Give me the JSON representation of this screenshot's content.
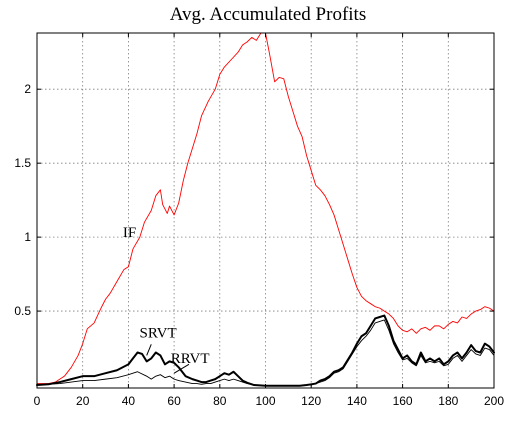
{
  "chart_data": {
    "type": "line",
    "title": "Avg. Accumulated Profits",
    "xlabel": "",
    "ylabel": "",
    "xlim": [
      0,
      200
    ],
    "ylim": [
      -0.02,
      2.38
    ],
    "xticks": [
      0,
      20,
      40,
      60,
      80,
      100,
      120,
      140,
      160,
      180,
      200
    ],
    "yticks": [
      0.5,
      1,
      1.5,
      2
    ],
    "ytick_labels": [
      "0.5",
      "1",
      "1.5",
      "2"
    ],
    "grid": true,
    "legend": "none",
    "series": [
      {
        "name": "IF",
        "color": "#ff0000",
        "width": 0.9,
        "x": [
          0,
          5,
          8,
          10,
          12,
          15,
          18,
          20,
          22,
          25,
          28,
          30,
          32,
          35,
          38,
          40,
          42,
          45,
          47,
          50,
          52,
          54,
          55,
          57,
          58,
          60,
          62,
          64,
          66,
          68,
          70,
          72,
          75,
          78,
          80,
          82,
          85,
          88,
          90,
          92,
          94,
          96,
          98,
          100,
          102,
          104,
          106,
          108,
          110,
          112,
          114,
          116,
          118,
          120,
          122,
          124,
          126,
          128,
          130,
          132,
          134,
          136,
          138,
          140,
          142,
          144,
          146,
          148,
          150,
          152,
          154,
          156,
          158,
          160,
          162,
          164,
          166,
          168,
          170,
          172,
          174,
          176,
          178,
          180,
          182,
          184,
          186,
          188,
          190,
          192,
          194,
          196,
          198,
          200
        ],
        "y": [
          0.01,
          0.01,
          0.02,
          0.04,
          0.06,
          0.12,
          0.2,
          0.28,
          0.38,
          0.42,
          0.52,
          0.58,
          0.62,
          0.7,
          0.78,
          0.8,
          0.92,
          1.0,
          1.1,
          1.18,
          1.28,
          1.32,
          1.22,
          1.16,
          1.21,
          1.15,
          1.23,
          1.38,
          1.5,
          1.6,
          1.7,
          1.82,
          1.92,
          2.0,
          2.1,
          2.15,
          2.2,
          2.25,
          2.3,
          2.32,
          2.35,
          2.33,
          2.38,
          2.38,
          2.22,
          2.05,
          2.08,
          2.07,
          1.95,
          1.85,
          1.75,
          1.68,
          1.55,
          1.45,
          1.35,
          1.32,
          1.28,
          1.22,
          1.15,
          1.05,
          0.95,
          0.85,
          0.75,
          0.66,
          0.6,
          0.57,
          0.55,
          0.53,
          0.52,
          0.5,
          0.48,
          0.45,
          0.4,
          0.37,
          0.36,
          0.38,
          0.35,
          0.38,
          0.39,
          0.37,
          0.4,
          0.4,
          0.38,
          0.41,
          0.43,
          0.42,
          0.46,
          0.45,
          0.48,
          0.5,
          0.51,
          0.53,
          0.52,
          0.5
        ]
      },
      {
        "name": "SRVT",
        "color": "#000000",
        "width": 2.0,
        "x": [
          0,
          5,
          10,
          15,
          20,
          25,
          30,
          35,
          40,
          42,
          44,
          46,
          48,
          50,
          52,
          54,
          56,
          58,
          60,
          62,
          65,
          68,
          70,
          72,
          74,
          76,
          78,
          80,
          82,
          84,
          86,
          88,
          90,
          92,
          95,
          100,
          105,
          110,
          115,
          118,
          120,
          122,
          124,
          126,
          128,
          130,
          132,
          134,
          136,
          138,
          140,
          142,
          144,
          146,
          148,
          150,
          152,
          154,
          156,
          158,
          160,
          162,
          164,
          166,
          168,
          170,
          172,
          174,
          176,
          178,
          180,
          182,
          184,
          186,
          188,
          190,
          192,
          194,
          196,
          198,
          200
        ],
        "y": [
          0.0,
          0.005,
          0.02,
          0.04,
          0.06,
          0.06,
          0.08,
          0.1,
          0.14,
          0.18,
          0.22,
          0.21,
          0.16,
          0.18,
          0.22,
          0.2,
          0.14,
          0.16,
          0.15,
          0.12,
          0.06,
          0.04,
          0.03,
          0.02,
          0.02,
          0.03,
          0.04,
          0.06,
          0.08,
          0.07,
          0.09,
          0.06,
          0.03,
          0.015,
          0.0,
          -0.005,
          -0.005,
          -0.005,
          -0.005,
          0.0,
          0.005,
          0.01,
          0.03,
          0.04,
          0.06,
          0.09,
          0.1,
          0.12,
          0.17,
          0.22,
          0.28,
          0.33,
          0.35,
          0.4,
          0.45,
          0.46,
          0.47,
          0.4,
          0.3,
          0.24,
          0.18,
          0.2,
          0.16,
          0.14,
          0.22,
          0.16,
          0.18,
          0.16,
          0.18,
          0.14,
          0.16,
          0.2,
          0.22,
          0.18,
          0.22,
          0.27,
          0.23,
          0.22,
          0.28,
          0.26,
          0.22
        ]
      },
      {
        "name": "RRVT",
        "color": "#000000",
        "width": 0.9,
        "x": [
          0,
          5,
          10,
          15,
          20,
          25,
          30,
          35,
          40,
          44,
          48,
          50,
          52,
          54,
          56,
          58,
          60,
          62,
          65,
          68,
          70,
          72,
          74,
          76,
          78,
          80,
          82,
          84,
          86,
          88,
          90,
          92,
          95,
          100,
          105,
          110,
          115,
          118,
          120,
          122,
          124,
          126,
          128,
          130,
          132,
          134,
          136,
          138,
          140,
          142,
          144,
          146,
          148,
          150,
          152,
          154,
          156,
          158,
          160,
          162,
          164,
          166,
          168,
          170,
          172,
          174,
          176,
          178,
          180,
          182,
          184,
          186,
          188,
          190,
          192,
          194,
          196,
          198,
          200
        ],
        "y": [
          0.0,
          0.005,
          0.01,
          0.02,
          0.03,
          0.03,
          0.04,
          0.05,
          0.07,
          0.09,
          0.06,
          0.04,
          0.06,
          0.07,
          0.05,
          0.06,
          0.04,
          0.03,
          0.02,
          0.01,
          0.01,
          0.005,
          0.01,
          0.01,
          0.02,
          0.03,
          0.04,
          0.03,
          0.04,
          0.03,
          0.02,
          0.01,
          0.0,
          -0.005,
          -0.005,
          -0.005,
          -0.005,
          0.0,
          0.0,
          0.01,
          0.02,
          0.03,
          0.05,
          0.08,
          0.09,
          0.11,
          0.16,
          0.21,
          0.26,
          0.3,
          0.33,
          0.37,
          0.42,
          0.43,
          0.44,
          0.37,
          0.28,
          0.22,
          0.17,
          0.18,
          0.15,
          0.13,
          0.2,
          0.15,
          0.16,
          0.15,
          0.16,
          0.13,
          0.14,
          0.18,
          0.2,
          0.16,
          0.2,
          0.24,
          0.21,
          0.2,
          0.25,
          0.24,
          0.2
        ]
      }
    ],
    "annotations": [
      {
        "text": "IF",
        "x": 40.5,
        "y": 1.0
      },
      {
        "text": "SRVT",
        "x": 53,
        "y": 0.32
      },
      {
        "text": "RRVT",
        "x": 67,
        "y": 0.15
      }
    ],
    "arrows": [
      {
        "from": [
          50,
          0.275
        ],
        "to": [
          48,
          0.2
        ]
      },
      {
        "from": [
          66.5,
          0.14
        ],
        "to": [
          60,
          0.08
        ]
      }
    ]
  }
}
